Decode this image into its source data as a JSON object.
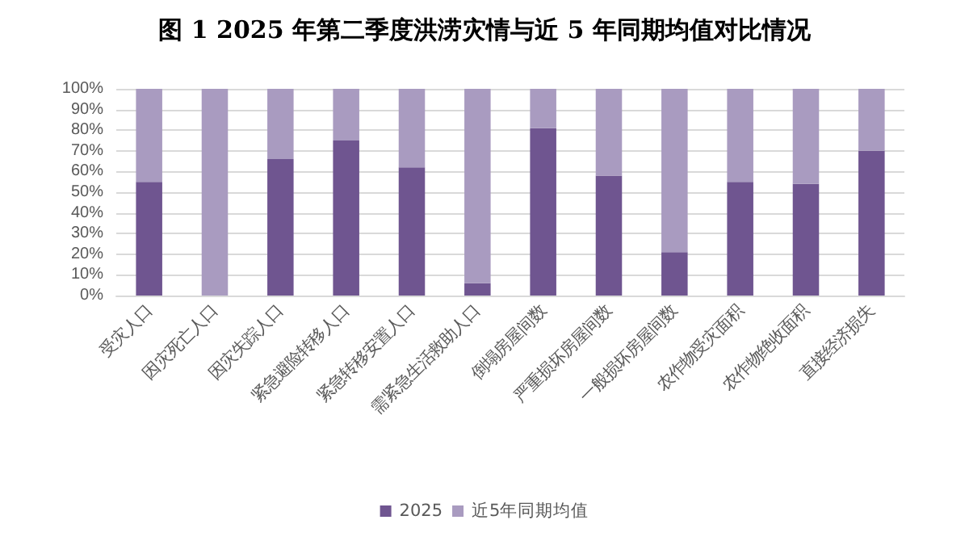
{
  "chart_data": {
    "type": "bar",
    "title": "图 1 2025 年第二季度洪涝灾情与近 5 年同期均值对比情况",
    "stacked": true,
    "categories": [
      "受灾人口",
      "因灾死亡人口",
      "因灾失踪人口",
      "紧急避险转移人口",
      "紧急转移安置人口",
      "需紧急生活救助人口",
      "倒塌房屋间数",
      "严重损坏房屋间数",
      "一般损坏房屋间数",
      "农作物受灾面积",
      "农作物绝收面积",
      "直接经济损失"
    ],
    "series": [
      {
        "name": "2025",
        "color": "#6f5590",
        "values": [
          55,
          0,
          66,
          75,
          62,
          6,
          81,
          58,
          21,
          55,
          54,
          70
        ]
      },
      {
        "name": "近5年同期均值",
        "color": "#a99bc0",
        "values": [
          45,
          100,
          34,
          25,
          38,
          94,
          19,
          42,
          79,
          45,
          46,
          30
        ]
      }
    ],
    "ylim": [
      0,
      100
    ],
    "yticks": [
      {
        "value": 0,
        "label": "0%"
      },
      {
        "value": 10,
        "label": "10%"
      },
      {
        "value": 20,
        "label": "20%"
      },
      {
        "value": 30,
        "label": "30%"
      },
      {
        "value": 40,
        "label": "40%"
      },
      {
        "value": 50,
        "label": "50%"
      },
      {
        "value": 60,
        "label": "60%"
      },
      {
        "value": 70,
        "label": "70%"
      },
      {
        "value": 80,
        "label": "80%"
      },
      {
        "value": 90,
        "label": "90%"
      },
      {
        "value": 100,
        "label": "100%"
      }
    ],
    "grid": "y",
    "legend": "bottom"
  }
}
